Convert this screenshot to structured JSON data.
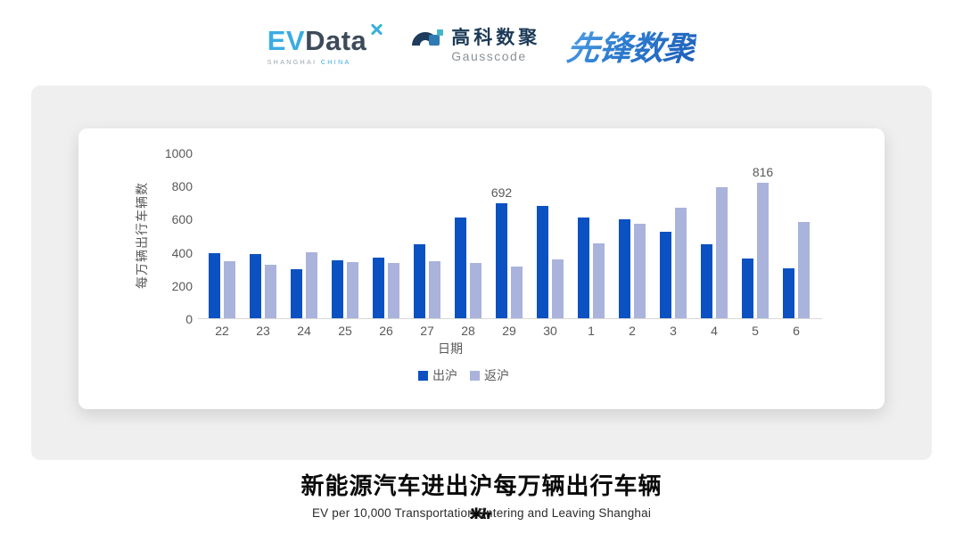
{
  "header": {
    "evdata": {
      "ev": "EV",
      "data": "Data",
      "tagline_shanghai": "SHANGHAI",
      "tagline_china": "CHINA"
    },
    "gausscode": {
      "cn": "高科数聚",
      "en": "Gausscode"
    },
    "xianfeng": {
      "text": "先锋数聚"
    }
  },
  "chart_data": {
    "type": "bar",
    "title": "新能源汽车进出沪每万辆出行车辆数",
    "subtitle": "EV per 10,000 Transportation Entering and Leaving Shanghai",
    "xlabel": "日期",
    "ylabel": "每万辆出行车辆数",
    "categories": [
      "22",
      "23",
      "24",
      "25",
      "26",
      "27",
      "28",
      "29",
      "30",
      "1",
      "2",
      "3",
      "4",
      "5",
      "6"
    ],
    "series": [
      {
        "name": "出沪",
        "color": "#0B51C1",
        "values": [
          390,
          385,
          295,
          348,
          363,
          447,
          608,
          692,
          680,
          610,
          595,
          520,
          445,
          360,
          302
        ]
      },
      {
        "name": "返沪",
        "color": "#A9B3DC",
        "values": [
          345,
          320,
          400,
          338,
          333,
          344,
          333,
          310,
          353,
          452,
          570,
          668,
          788,
          816,
          583
        ]
      }
    ],
    "ylim": [
      0,
      1000
    ],
    "yticks": [
      0,
      200,
      400,
      600,
      800,
      1000
    ],
    "bar_labels": [
      {
        "series": "出沪",
        "category": "29",
        "text": "692"
      },
      {
        "series": "返沪",
        "category": "5",
        "text": "816"
      }
    ],
    "legend_position": "bottom",
    "grid": false
  },
  "footer": {
    "title": "新能源汽车进出沪每万辆出行车辆数",
    "subtitle": "EV per 10,000 Transportation Entering and Leaving Shanghai"
  },
  "colors": {
    "series_out": "#0B51C1",
    "series_back": "#A9B3DC",
    "panel_bg": "#EFEFEF",
    "axis_text": "#595959",
    "axis_line": "#D9D9D9",
    "evdata_blue": "#3BACE2",
    "evdata_dark": "#3D4A5A",
    "gausscode_navy": "#1C3A57",
    "xianfeng_blue": "#2D7CCF"
  }
}
